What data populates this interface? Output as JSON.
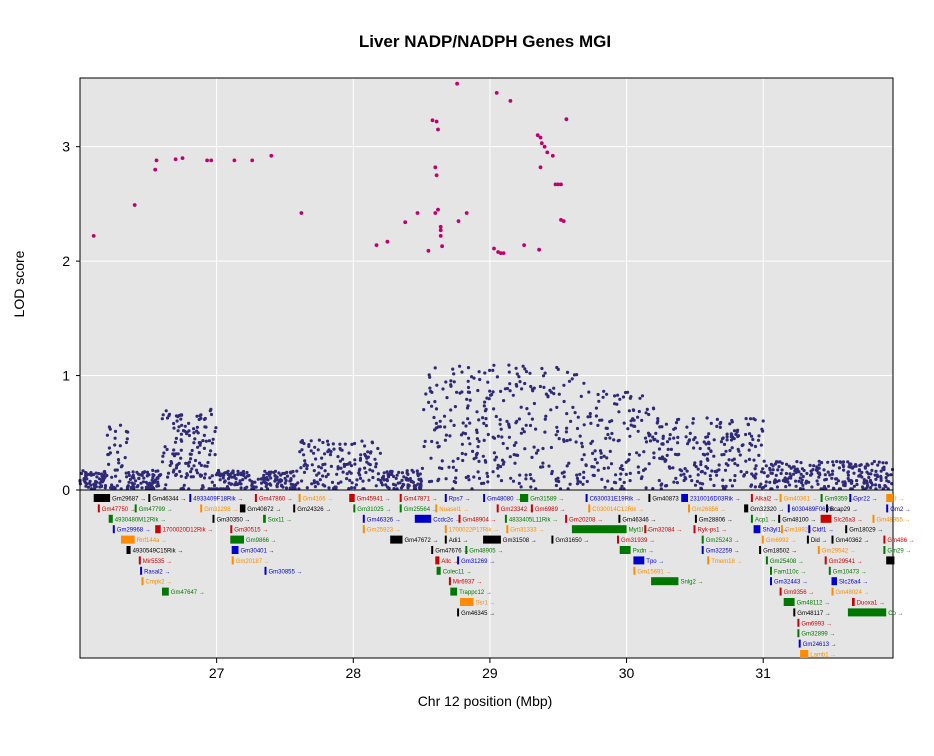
{
  "chart_data": {
    "type": "scatter",
    "title": "Liver NADP/NADPH Genes MGI",
    "xlabel": "Chr 12 position (Mbp)",
    "ylabel": "LOD score",
    "xlim": [
      26.0,
      31.95
    ],
    "ylim": [
      0,
      3.6
    ],
    "x_ticks": [
      27,
      28,
      29,
      30,
      31
    ],
    "y_ticks": [
      0,
      1,
      2,
      3
    ],
    "grid": true,
    "colors": {
      "background": "#e5e5e5",
      "grid": "#ffffff",
      "points": "#2e2a78",
      "highlight": "#c0006e",
      "gene_black": "#000000",
      "gene_red": "#cc0000",
      "gene_blue": "#0000cc",
      "gene_green": "#007700",
      "gene_orange": "#ff8c00"
    },
    "series": [
      {
        "color": "#c0006e",
        "points": [
          [
            26.1,
            2.22
          ],
          [
            26.4,
            2.49
          ],
          [
            26.55,
            2.8
          ],
          [
            26.56,
            2.88
          ],
          [
            26.7,
            2.89
          ],
          [
            26.75,
            2.9
          ],
          [
            26.93,
            2.88
          ],
          [
            26.96,
            2.88
          ],
          [
            27.13,
            2.88
          ],
          [
            27.26,
            2.88
          ],
          [
            27.4,
            2.92
          ],
          [
            27.62,
            2.42
          ],
          [
            28.17,
            2.14
          ],
          [
            28.25,
            2.17
          ],
          [
            28.38,
            2.34
          ],
          [
            28.47,
            2.42
          ],
          [
            28.55,
            2.09
          ],
          [
            28.6,
            2.82
          ],
          [
            28.61,
            2.75
          ],
          [
            28.58,
            3.23
          ],
          [
            28.61,
            3.22
          ],
          [
            28.62,
            3.15
          ],
          [
            28.62,
            2.45
          ],
          [
            28.6,
            2.42
          ],
          [
            28.64,
            2.3
          ],
          [
            28.64,
            2.27
          ],
          [
            28.64,
            2.22
          ],
          [
            28.65,
            2.13
          ],
          [
            28.77,
            2.35
          ],
          [
            28.83,
            2.42
          ],
          [
            28.76,
            3.55
          ],
          [
            29.05,
            3.47
          ],
          [
            29.03,
            2.11
          ],
          [
            29.06,
            2.08
          ],
          [
            29.08,
            2.07
          ],
          [
            29.1,
            2.07
          ],
          [
            29.15,
            3.4
          ],
          [
            29.25,
            2.14
          ],
          [
            29.36,
            2.1
          ],
          [
            29.37,
            2.82
          ],
          [
            29.35,
            3.1
          ],
          [
            29.37,
            3.08
          ],
          [
            29.38,
            3.03
          ],
          [
            29.4,
            3.0
          ],
          [
            29.42,
            2.95
          ],
          [
            29.46,
            2.92
          ],
          [
            29.48,
            2.67
          ],
          [
            29.5,
            2.67
          ],
          [
            29.52,
            2.67
          ],
          [
            29.52,
            2.36
          ],
          [
            29.54,
            2.35
          ],
          [
            29.56,
            3.24
          ]
        ]
      }
    ],
    "genes": [
      {
        "name": "Gm29687",
        "x": 26.1,
        "lane": 0,
        "c": "k",
        "w": 0.12
      },
      {
        "name": "Gm46344",
        "x": 26.5,
        "lane": 0,
        "c": "k",
        "w": 0.01
      },
      {
        "name": "4933409F18Rik",
        "x": 26.8,
        "lane": 0,
        "c": "b",
        "w": 0.01
      },
      {
        "name": "Gm47860",
        "x": 27.28,
        "lane": 0,
        "c": "r",
        "w": 0.01
      },
      {
        "name": "Gm4166",
        "x": 27.6,
        "lane": 0,
        "c": "o",
        "w": 0.01
      },
      {
        "name": "Gm45941",
        "x": 27.97,
        "lane": 0,
        "c": "r",
        "w": 0.04
      },
      {
        "name": "Gm47871",
        "x": 28.34,
        "lane": 0,
        "c": "r",
        "w": 0.01
      },
      {
        "name": "Rps7",
        "x": 28.67,
        "lane": 0,
        "c": "b",
        "w": 0.01
      },
      {
        "name": "Gm48080",
        "x": 28.95,
        "lane": 0,
        "c": "b",
        "w": 0.01
      },
      {
        "name": "Gm31589",
        "x": 29.22,
        "lane": 0,
        "c": "g",
        "w": 0.06
      },
      {
        "name": "C630031E19Rik",
        "x": 29.7,
        "lane": 0,
        "c": "b",
        "w": 0.01
      },
      {
        "name": "Gm40873",
        "x": 30.16,
        "lane": 0,
        "c": "k",
        "w": 0.01
      },
      {
        "name": "2310016D03Rik",
        "x": 30.4,
        "lane": 0,
        "c": "b",
        "w": 0.05
      },
      {
        "name": "Alkal2",
        "x": 30.91,
        "lane": 0,
        "c": "r",
        "w": 0.01
      },
      {
        "name": "Gm40361",
        "x": 31.12,
        "lane": 0,
        "c": "o",
        "w": 0.01
      },
      {
        "name": "Gm9359",
        "x": 31.42,
        "lane": 0,
        "c": "g",
        "w": 0.01
      },
      {
        "name": "Gpr22",
        "x": 31.63,
        "lane": 0,
        "c": "b",
        "w": 0.01
      },
      {
        "name": "I",
        "x": 31.9,
        "lane": 0,
        "c": "o",
        "w": 0.05
      },
      {
        "name": "Gm47750",
        "x": 26.13,
        "lane": 1,
        "c": "r",
        "w": 0.01
      },
      {
        "name": "Gm47799",
        "x": 26.4,
        "lane": 1,
        "c": "g",
        "w": 0.01
      },
      {
        "name": "Gm31298",
        "x": 26.88,
        "lane": 1,
        "c": "o",
        "w": 0.01
      },
      {
        "name": "Gm40872",
        "x": 27.17,
        "lane": 1,
        "c": "k",
        "w": 0.04
      },
      {
        "name": "Gm24326",
        "x": 27.56,
        "lane": 1,
        "c": "k",
        "w": 0.01
      },
      {
        "name": "Gm31025",
        "x": 28.0,
        "lane": 1,
        "c": "g",
        "w": 0.01
      },
      {
        "name": "Gm25564",
        "x": 28.34,
        "lane": 1,
        "c": "g",
        "w": 0.01
      },
      {
        "name": "Nuasel1",
        "x": 28.6,
        "lane": 1,
        "c": "o",
        "w": 0.01
      },
      {
        "name": "Gm23342",
        "x": 29.05,
        "lane": 1,
        "c": "r",
        "w": 0.01
      },
      {
        "name": "Gm6989",
        "x": 29.3,
        "lane": 1,
        "c": "r",
        "w": 0.01
      },
      {
        "name": "C030014C12Rik",
        "x": 29.72,
        "lane": 1,
        "c": "o",
        "w": 0.01
      },
      {
        "name": "Gm26856",
        "x": 30.45,
        "lane": 1,
        "c": "o",
        "w": 0.01
      },
      {
        "name": "Gm32320",
        "x": 30.86,
        "lane": 1,
        "c": "k",
        "w": 0.03
      },
      {
        "name": "6030489F06Rik",
        "x": 31.18,
        "lane": 1,
        "c": "b",
        "w": 0.01
      },
      {
        "name": "Bcap29",
        "x": 31.46,
        "lane": 1,
        "c": "k",
        "w": 0.01
      },
      {
        "name": "Gm2",
        "x": 31.9,
        "lane": 1,
        "c": "b",
        "w": 0.01
      },
      {
        "name": "4930480M12Rik",
        "x": 26.21,
        "lane": 2,
        "c": "g",
        "w": 0.03
      },
      {
        "name": "Gm30350",
        "x": 26.97,
        "lane": 2,
        "c": "k",
        "w": 0.01
      },
      {
        "name": "Sox11",
        "x": 27.34,
        "lane": 2,
        "c": "g",
        "w": 0.02
      },
      {
        "name": "Gm46326",
        "x": 28.07,
        "lane": 2,
        "c": "b",
        "w": 0.01
      },
      {
        "name": "Ccdc2c",
        "x": 28.45,
        "lane": 2,
        "c": "b",
        "w": 0.12
      },
      {
        "name": "Gm48904",
        "x": 28.77,
        "lane": 2,
        "c": "r",
        "w": 0.01
      },
      {
        "name": "4833405L11Rik",
        "x": 29.11,
        "lane": 2,
        "c": "g",
        "w": 0.01
      },
      {
        "name": "Gm20208",
        "x": 29.55,
        "lane": 2,
        "c": "r",
        "w": 0.01
      },
      {
        "name": "Gm46346",
        "x": 29.94,
        "lane": 2,
        "c": "k",
        "w": 0.01
      },
      {
        "name": "Gm28806",
        "x": 30.5,
        "lane": 2,
        "c": "k",
        "w": 0.01
      },
      {
        "name": "Acp1",
        "x": 30.91,
        "lane": 2,
        "c": "g",
        "w": 0.01
      },
      {
        "name": "Gm48100",
        "x": 31.11,
        "lane": 2,
        "c": "k",
        "w": 0.01
      },
      {
        "name": "Slc26a3",
        "x": 31.42,
        "lane": 2,
        "c": "r",
        "w": 0.08
      },
      {
        "name": "Gm48955",
        "x": 31.8,
        "lane": 2,
        "c": "o",
        "w": 0.01
      },
      {
        "name": "Gm29968",
        "x": 26.24,
        "lane": 3,
        "c": "b",
        "w": 0.01
      },
      {
        "name": "1700020D12Rik",
        "x": 26.55,
        "lane": 3,
        "c": "r",
        "w": 0.04
      },
      {
        "name": "Gm30515",
        "x": 27.1,
        "lane": 3,
        "c": "r",
        "w": 0.01
      },
      {
        "name": "Gm25923",
        "x": 28.07,
        "lane": 3,
        "c": "o",
        "w": 0.01
      },
      {
        "name": "1700022P17Rik",
        "x": 28.67,
        "lane": 3,
        "c": "o",
        "w": 0.01
      },
      {
        "name": "Gm31333",
        "x": 29.12,
        "lane": 3,
        "c": "o",
        "w": 0.01
      },
      {
        "name": "Myt1l",
        "x": 29.6,
        "lane": 3,
        "c": "g",
        "w": 0.4
      },
      {
        "name": "Gm32084",
        "x": 30.13,
        "lane": 3,
        "c": "r",
        "w": 0.01
      },
      {
        "name": "Ryk-ps1",
        "x": 30.49,
        "lane": 3,
        "c": "r",
        "w": 0.01
      },
      {
        "name": "Sh3yl1",
        "x": 30.93,
        "lane": 3,
        "c": "b",
        "w": 0.05
      },
      {
        "name": "Gm18924",
        "x": 31.13,
        "lane": 3,
        "c": "o",
        "w": 0.01
      },
      {
        "name": "Cldf1",
        "x": 31.33,
        "lane": 3,
        "c": "b",
        "w": 0.01
      },
      {
        "name": "Gm18029",
        "x": 31.6,
        "lane": 3,
        "c": "k",
        "w": 0.01
      },
      {
        "name": "Rnf144a",
        "x": 26.3,
        "lane": 4,
        "c": "o",
        "w": 0.1
      },
      {
        "name": "Gm9866",
        "x": 27.1,
        "lane": 4,
        "c": "g",
        "w": 0.1
      },
      {
        "name": "Gm47672",
        "x": 28.27,
        "lane": 4,
        "c": "k",
        "w": 0.09
      },
      {
        "name": "Adi1",
        "x": 28.67,
        "lane": 4,
        "c": "k",
        "w": 0.01
      },
      {
        "name": "Gm31508",
        "x": 28.95,
        "lane": 4,
        "c": "k",
        "w": 0.13
      },
      {
        "name": "Gm31650",
        "x": 29.45,
        "lane": 4,
        "c": "k",
        "w": 0.01
      },
      {
        "name": "Gm31939",
        "x": 29.93,
        "lane": 4,
        "c": "r",
        "w": 0.01
      },
      {
        "name": "Gm25243",
        "x": 30.55,
        "lane": 4,
        "c": "g",
        "w": 0.01
      },
      {
        "name": "Gm6992",
        "x": 30.99,
        "lane": 4,
        "c": "o",
        "w": 0.01
      },
      {
        "name": "Did",
        "x": 31.32,
        "lane": 4,
        "c": "k",
        "w": 0.01
      },
      {
        "name": "Gm40362",
        "x": 31.5,
        "lane": 4,
        "c": "k",
        "w": 0.01
      },
      {
        "name": "Gm486",
        "x": 31.88,
        "lane": 4,
        "c": "r",
        "w": 0.01
      },
      {
        "name": "4930549C15Rik",
        "x": 26.34,
        "lane": 5,
        "c": "k",
        "w": 0.03
      },
      {
        "name": "Gm30401",
        "x": 27.11,
        "lane": 5,
        "c": "b",
        "w": 0.05
      },
      {
        "name": "Gm47676",
        "x": 28.57,
        "lane": 5,
        "c": "k",
        "w": 0.01
      },
      {
        "name": "Gm48905",
        "x": 28.82,
        "lane": 5,
        "c": "g",
        "w": 0.01
      },
      {
        "name": "Pxdn",
        "x": 29.95,
        "lane": 5,
        "c": "g",
        "w": 0.08
      },
      {
        "name": "Gm32259",
        "x": 30.55,
        "lane": 5,
        "c": "b",
        "w": 0.01
      },
      {
        "name": "Gm18502",
        "x": 30.97,
        "lane": 5,
        "c": "k",
        "w": 0.01
      },
      {
        "name": "Gm29542",
        "x": 31.4,
        "lane": 5,
        "c": "o",
        "w": 0.01
      },
      {
        "name": "Gm29",
        "x": 31.88,
        "lane": 5,
        "c": "g",
        "w": 0.01
      },
      {
        "name": "Mir5535",
        "x": 26.43,
        "lane": 6,
        "c": "r",
        "w": 0.01
      },
      {
        "name": "Gm20187",
        "x": 27.11,
        "lane": 6,
        "c": "o",
        "w": 0.01
      },
      {
        "name": "Allc",
        "x": 28.6,
        "lane": 6,
        "c": "r",
        "w": 0.03
      },
      {
        "name": "Gm31269",
        "x": 28.76,
        "lane": 6,
        "c": "b",
        "w": 0.01
      },
      {
        "name": "Tpo",
        "x": 30.05,
        "lane": 6,
        "c": "b",
        "w": 0.08
      },
      {
        "name": "Tmem18",
        "x": 30.59,
        "lane": 6,
        "c": "o",
        "w": 0.01
      },
      {
        "name": "Gm25408",
        "x": 31.02,
        "lane": 6,
        "c": "g",
        "w": 0.01
      },
      {
        "name": "Gm29541",
        "x": 31.45,
        "lane": 6,
        "c": "r",
        "w": 0.01
      },
      {
        "name": "",
        "x": 31.9,
        "lane": 6,
        "c": "k",
        "w": 0.06
      },
      {
        "name": "Rasal2",
        "x": 26.44,
        "lane": 7,
        "c": "b",
        "w": 0.01
      },
      {
        "name": "Gm30855",
        "x": 27.35,
        "lane": 7,
        "c": "b",
        "w": 0.01
      },
      {
        "name": "Colec11",
        "x": 28.61,
        "lane": 7,
        "c": "g",
        "w": 0.03
      },
      {
        "name": "Gm15691",
        "x": 30.05,
        "lane": 7,
        "c": "o",
        "w": 0.01
      },
      {
        "name": "Fam110c",
        "x": 31.05,
        "lane": 7,
        "c": "g",
        "w": 0.01
      },
      {
        "name": "Gm10473",
        "x": 31.48,
        "lane": 7,
        "c": "g",
        "w": 0.01
      },
      {
        "name": "Cmpk2",
        "x": 26.45,
        "lane": 8,
        "c": "o",
        "w": 0.01
      },
      {
        "name": "Mir6937",
        "x": 28.7,
        "lane": 8,
        "c": "r",
        "w": 0.01
      },
      {
        "name": "Snlg2",
        "x": 30.18,
        "lane": 8,
        "c": "g",
        "w": 0.2
      },
      {
        "name": "Gm32443",
        "x": 31.05,
        "lane": 8,
        "c": "b",
        "w": 0.01
      },
      {
        "name": "Slc26a4",
        "x": 31.5,
        "lane": 8,
        "c": "b",
        "w": 0.04
      },
      {
        "name": "Gm47647",
        "x": 26.6,
        "lane": 9,
        "c": "g",
        "w": 0.05
      },
      {
        "name": "Trappc12",
        "x": 28.71,
        "lane": 9,
        "c": "g",
        "w": 0.05
      },
      {
        "name": "Gm9356",
        "x": 31.12,
        "lane": 9,
        "c": "r",
        "w": 0.01
      },
      {
        "name": "Gm48024",
        "x": 31.5,
        "lane": 9,
        "c": "o",
        "w": 0.01
      },
      {
        "name": "Ssr1",
        "x": 28.78,
        "lane": 10,
        "c": "o",
        "w": 0.1
      },
      {
        "name": "Gm48112",
        "x": 31.15,
        "lane": 10,
        "c": "g",
        "w": 0.08
      },
      {
        "name": "Duoxa1",
        "x": 31.65,
        "lane": 10,
        "c": "r",
        "w": 0.02
      },
      {
        "name": "Gm46345",
        "x": 28.76,
        "lane": 11,
        "c": "k",
        "w": 0.01
      },
      {
        "name": "Gm48117",
        "x": 31.22,
        "lane": 11,
        "c": "k",
        "w": 0.01
      },
      {
        "name": "Co",
        "x": 31.62,
        "lane": 11,
        "c": "g",
        "w": 0.28
      },
      {
        "name": "Gm6993",
        "x": 31.25,
        "lane": 12,
        "c": "r",
        "w": 0.01
      },
      {
        "name": "Gm32899",
        "x": 31.25,
        "lane": 13,
        "c": "g",
        "w": 0.01
      },
      {
        "name": "Gm24613",
        "x": 31.26,
        "lane": 14,
        "c": "b",
        "w": 0.01
      },
      {
        "name": "Lamb1",
        "x": 31.27,
        "lane": 15,
        "c": "o",
        "w": 0.06
      }
    ]
  }
}
